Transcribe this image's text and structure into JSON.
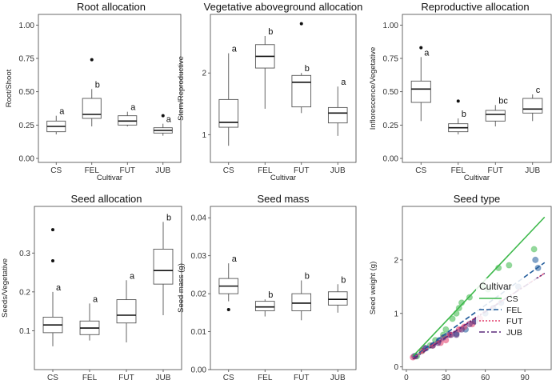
{
  "chart_data": [
    {
      "type": "box",
      "title": "Root allocation",
      "xlabel": "Cultivar",
      "ylabel": "Root/Shoot",
      "categories": [
        "CS",
        "FEL",
        "FUT",
        "JUB"
      ],
      "ylim": [
        -0.03,
        1.08
      ],
      "yticks": [
        "0.00",
        "0.25",
        "0.50",
        "0.75",
        "1.00"
      ],
      "ytick_values": [
        0,
        0.25,
        0.5,
        0.75,
        1.0
      ],
      "boxes": [
        {
          "min": 0.18,
          "q1": 0.2,
          "median": 0.24,
          "q3": 0.28,
          "max": 0.32,
          "outliers": []
        },
        {
          "min": 0.24,
          "q1": 0.3,
          "median": 0.33,
          "q3": 0.45,
          "max": 0.52,
          "outliers": [
            0.74
          ]
        },
        {
          "min": 0.24,
          "q1": 0.25,
          "median": 0.28,
          "q3": 0.32,
          "max": 0.35,
          "outliers": []
        },
        {
          "min": 0.17,
          "q1": 0.19,
          "median": 0.21,
          "q3": 0.23,
          "max": 0.26,
          "outliers": [
            0.32
          ]
        }
      ],
      "letters": [
        "a",
        "b",
        "a",
        "a"
      ]
    },
    {
      "type": "box",
      "title": "Vegetative aboveground allocation",
      "xlabel": "Cultivar",
      "ylabel": "Stem/Reproductive",
      "categories": [
        "CS",
        "FEL",
        "FUT",
        "JUB"
      ],
      "ylim": [
        0.55,
        2.95
      ],
      "yticks": [
        "1",
        "2"
      ],
      "ytick_values": [
        1,
        2
      ],
      "boxes": [
        {
          "min": 0.82,
          "q1": 1.12,
          "median": 1.2,
          "q3": 1.57,
          "max": 2.32,
          "outliers": []
        },
        {
          "min": 1.42,
          "q1": 2.08,
          "median": 2.27,
          "q3": 2.46,
          "max": 2.6,
          "outliers": []
        },
        {
          "min": 1.35,
          "q1": 1.45,
          "median": 1.85,
          "q3": 1.96,
          "max": 2.0,
          "outliers": [
            2.8
          ]
        },
        {
          "min": 0.98,
          "q1": 1.19,
          "median": 1.35,
          "q3": 1.44,
          "max": 1.78,
          "outliers": []
        }
      ],
      "letters": [
        "a",
        "b",
        "b",
        "a"
      ]
    },
    {
      "type": "box",
      "title": "Reproductive allocation",
      "xlabel": "Cultivar",
      "ylabel": "Inflorescence/Vegetative",
      "categories": [
        "CS",
        "FEL",
        "FUT",
        "JUB"
      ],
      "ylim": [
        -0.03,
        1.08
      ],
      "yticks": [
        "0.00",
        "0.25",
        "0.50",
        "0.75",
        "1.00"
      ],
      "ytick_values": [
        0,
        0.25,
        0.5,
        0.75,
        1.0
      ],
      "boxes": [
        {
          "min": 0.28,
          "q1": 0.42,
          "median": 0.52,
          "q3": 0.58,
          "max": 0.76,
          "outliers": [
            0.83
          ]
        },
        {
          "min": 0.18,
          "q1": 0.2,
          "median": 0.23,
          "q3": 0.26,
          "max": 0.3,
          "outliers": [
            0.43
          ]
        },
        {
          "min": 0.24,
          "q1": 0.28,
          "median": 0.33,
          "q3": 0.36,
          "max": 0.4,
          "outliers": []
        },
        {
          "min": 0.28,
          "q1": 0.34,
          "median": 0.37,
          "q3": 0.45,
          "max": 0.48,
          "outliers": []
        }
      ],
      "letters": [
        "a",
        "b",
        "bc",
        "c"
      ]
    },
    {
      "type": "box",
      "title": "Seed allocation",
      "xlabel": "Cultivar",
      "ylabel": "Seeds/Vegetative",
      "categories": [
        "CS",
        "FEL",
        "FUT",
        "JUB"
      ],
      "ylim": [
        0.0,
        0.42
      ],
      "yticks": [
        "0.1",
        "0.2",
        "0.3"
      ],
      "ytick_values": [
        0.1,
        0.2,
        0.3
      ],
      "boxes": [
        {
          "min": 0.06,
          "q1": 0.095,
          "median": 0.115,
          "q3": 0.135,
          "max": 0.2,
          "outliers": [
            0.36,
            0.28
          ]
        },
        {
          "min": 0.075,
          "q1": 0.09,
          "median": 0.107,
          "q3": 0.125,
          "max": 0.17,
          "outliers": []
        },
        {
          "min": 0.07,
          "q1": 0.12,
          "median": 0.14,
          "q3": 0.18,
          "max": 0.23,
          "outliers": []
        },
        {
          "min": 0.14,
          "q1": 0.22,
          "median": 0.255,
          "q3": 0.31,
          "max": 0.38,
          "outliers": []
        }
      ],
      "letters": [
        "a",
        "a",
        "a",
        "b"
      ]
    },
    {
      "type": "box",
      "title": "Seed mass",
      "xlabel": "Cultivar",
      "ylabel": "Seed mass (g)",
      "categories": [
        "CS",
        "FEL",
        "FUT",
        "JUB"
      ],
      "ylim": [
        0.0,
        0.043
      ],
      "yticks": [
        "0.00",
        "0.01",
        "0.02",
        "0.03",
        "0.04"
      ],
      "ytick_values": [
        0.0,
        0.01,
        0.02,
        0.03,
        0.04
      ],
      "boxes": [
        {
          "min": 0.018,
          "q1": 0.02,
          "median": 0.022,
          "q3": 0.024,
          "max": 0.028,
          "outliers": [
            0.0158
          ]
        },
        {
          "min": 0.014,
          "q1": 0.0155,
          "median": 0.0165,
          "q3": 0.018,
          "max": 0.0185,
          "outliers": []
        },
        {
          "min": 0.013,
          "q1": 0.0155,
          "median": 0.0175,
          "q3": 0.02,
          "max": 0.0235,
          "outliers": []
        },
        {
          "min": 0.015,
          "q1": 0.017,
          "median": 0.0185,
          "q3": 0.0205,
          "max": 0.0225,
          "outliers": []
        }
      ],
      "letters": [
        "a",
        "b",
        "b",
        "b"
      ]
    },
    {
      "type": "scatter",
      "title": "Seed type",
      "xlabel": "Seed number",
      "ylabel": "Seed weight (g)",
      "xlim": [
        -3,
        110
      ],
      "ylim": [
        -0.05,
        3.0
      ],
      "xticks": [
        "0",
        "30",
        "60",
        "90"
      ],
      "xtick_values": [
        0,
        30,
        60,
        90
      ],
      "yticks": [
        "0",
        "1",
        "2"
      ],
      "ytick_values": [
        0,
        1,
        2
      ],
      "legend_title": "Cultivar",
      "series": [
        {
          "name": "CS",
          "color": "#3cb84a",
          "dash": "",
          "fit": [
            [
              5,
              0.2
            ],
            [
              105,
              2.8
            ]
          ],
          "points": [
            [
              8,
              0.2
            ],
            [
              12,
              0.3
            ],
            [
              18,
              0.4
            ],
            [
              22,
              0.5
            ],
            [
              28,
              0.6
            ],
            [
              30,
              0.7
            ],
            [
              35,
              0.9
            ],
            [
              38,
              1.0
            ],
            [
              40,
              1.1
            ],
            [
              42,
              1.2
            ],
            [
              48,
              1.3
            ],
            [
              58,
              1.5
            ],
            [
              62,
              1.45
            ],
            [
              70,
              1.85
            ],
            [
              78,
              1.9
            ],
            [
              97,
              2.2
            ]
          ]
        },
        {
          "name": "FEL",
          "color": "#1f5a9a",
          "dash": "6,3",
          "fit": [
            [
              5,
              0.18
            ],
            [
              105,
              1.95
            ]
          ],
          "points": [
            [
              6,
              0.2
            ],
            [
              15,
              0.35
            ],
            [
              25,
              0.5
            ],
            [
              32,
              0.6
            ],
            [
              38,
              0.62
            ],
            [
              45,
              0.7
            ],
            [
              52,
              0.85
            ],
            [
              60,
              1.0
            ],
            [
              66,
              1.1
            ],
            [
              72,
              1.2
            ],
            [
              85,
              1.5
            ],
            [
              98,
              2.0
            ],
            [
              100,
              1.85
            ]
          ]
        },
        {
          "name": "FUT",
          "color": "#e23c6a",
          "dash": "2,2",
          "fit": [
            [
              5,
              0.17
            ],
            [
              105,
              1.75
            ]
          ],
          "points": [
            [
              5,
              0.18
            ],
            [
              12,
              0.3
            ],
            [
              20,
              0.4
            ],
            [
              26,
              0.45
            ],
            [
              30,
              0.5
            ],
            [
              33,
              0.6
            ],
            [
              40,
              0.7
            ],
            [
              44,
              0.75
            ],
            [
              50,
              0.8
            ],
            [
              56,
              0.9
            ]
          ]
        },
        {
          "name": "JUB",
          "color": "#5a2a7a",
          "dash": "7,3,2,3",
          "fit": [
            [
              5,
              0.15
            ],
            [
              105,
              1.75
            ]
          ],
          "points": [
            [
              7,
              0.2
            ],
            [
              14,
              0.35
            ],
            [
              20,
              0.4
            ],
            [
              24,
              0.45
            ],
            [
              28,
              0.55
            ],
            [
              34,
              0.6
            ],
            [
              38,
              0.6
            ],
            [
              42,
              0.7
            ],
            [
              48,
              0.8
            ],
            [
              52,
              0.85
            ]
          ]
        }
      ]
    }
  ]
}
